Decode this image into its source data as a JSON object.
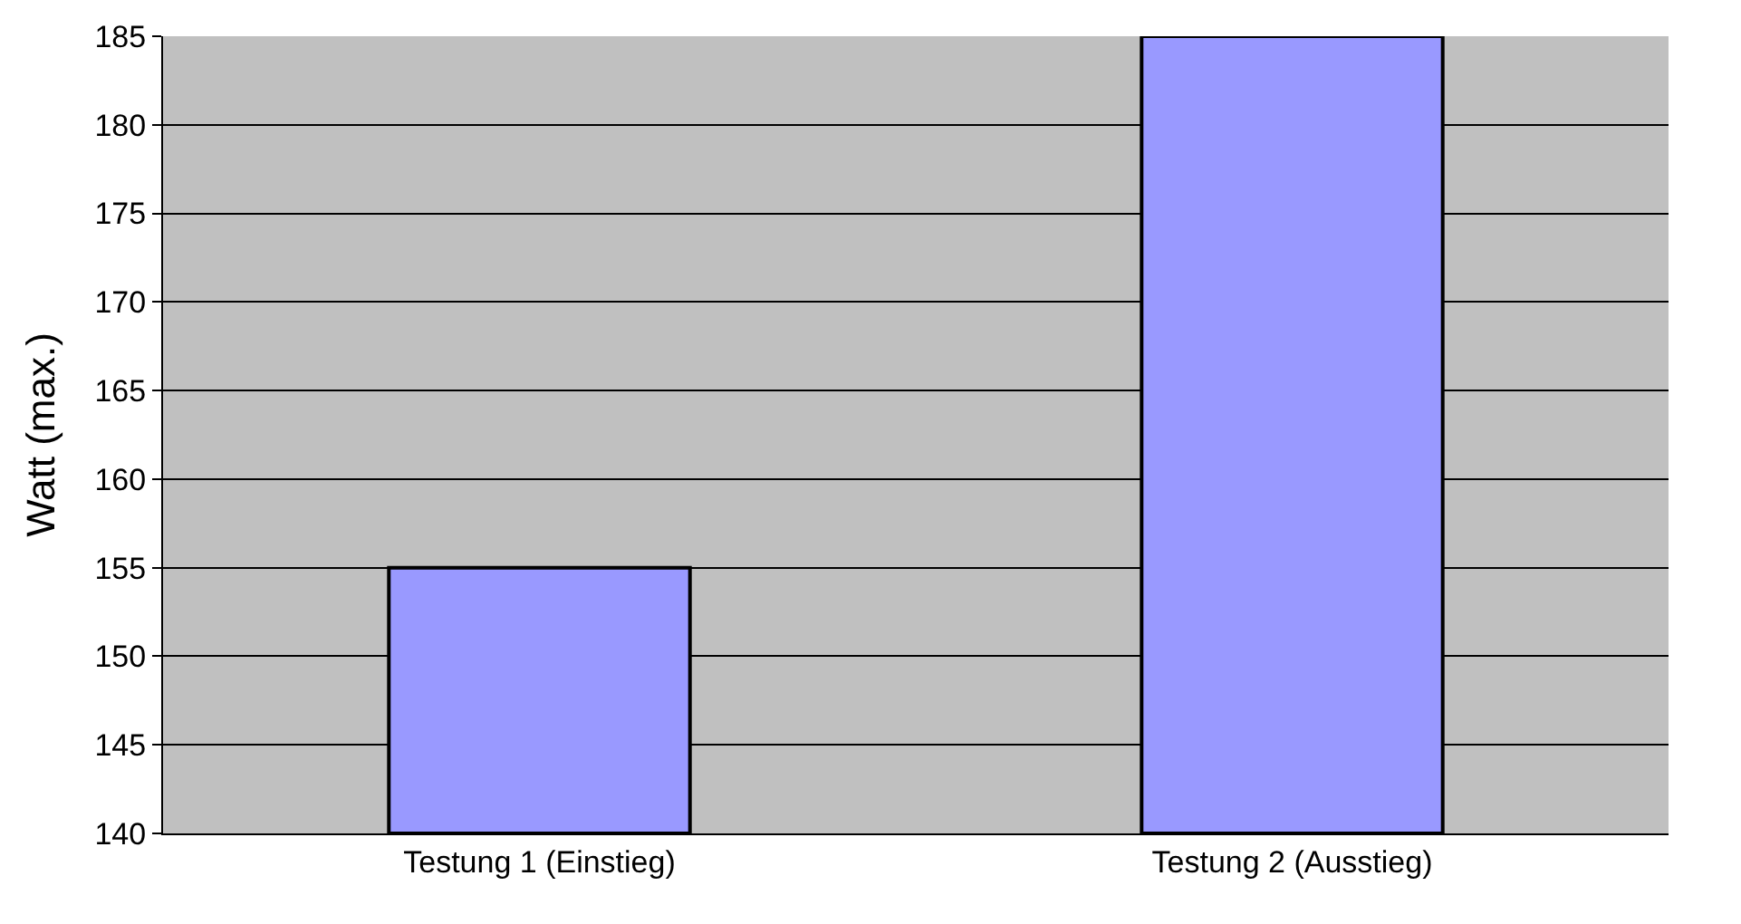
{
  "chart_data": {
    "type": "bar",
    "ylabel": "Watt (max.)",
    "categories": [
      "Testung 1 (Einstieg)",
      "Testung 2 (Ausstieg)"
    ],
    "values": [
      155,
      185
    ],
    "color": "#9999ff",
    "ylim": [
      140,
      185
    ],
    "yticks": [
      140,
      145,
      150,
      155,
      160,
      165,
      170,
      175,
      180,
      185
    ],
    "grid": "y"
  }
}
